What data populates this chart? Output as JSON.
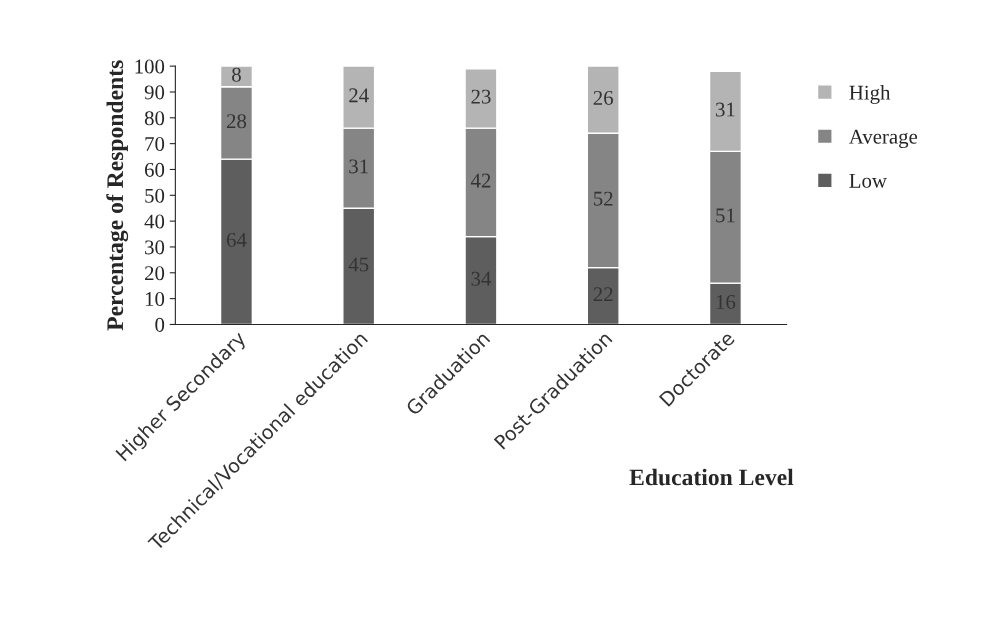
{
  "chart_data": {
    "type": "bar",
    "stacked": true,
    "xlabel": "Education Level",
    "ylabel": "Percentage of Respondents",
    "categories": [
      "Higher Secondary",
      "Technical/Vocational education",
      "Graduation",
      "Post-Graduation",
      "Doctorate"
    ],
    "series": [
      {
        "name": "Low",
        "color": "#5e5e5e",
        "values": [
          64,
          45,
          34,
          22,
          16
        ]
      },
      {
        "name": "Average",
        "color": "#858585",
        "values": [
          28,
          31,
          42,
          52,
          51
        ]
      },
      {
        "name": "High",
        "color": "#b4b4b4",
        "values": [
          8,
          24,
          23,
          26,
          31
        ]
      }
    ],
    "ylim": [
      0,
      100
    ],
    "yticks": [
      0,
      10,
      20,
      30,
      40,
      50,
      60,
      70,
      80,
      90,
      100
    ],
    "data_labels": true,
    "legend": "right",
    "grid": false
  }
}
